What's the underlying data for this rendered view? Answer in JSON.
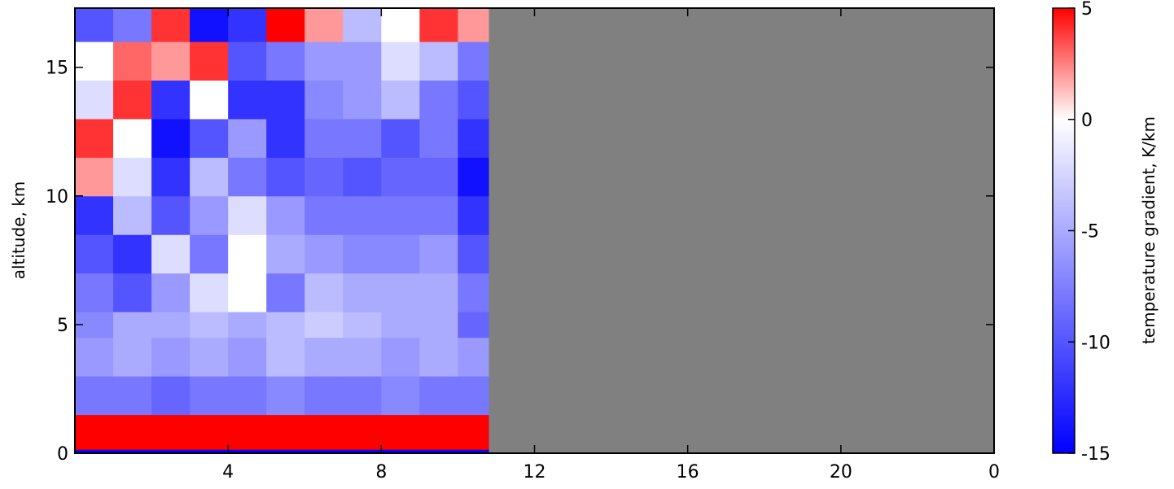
{
  "chart_data": {
    "type": "heatmap",
    "y_label": "altitude, km",
    "colorbar_label": "temperature gradient, K/km",
    "x_edges": [
      0,
      1,
      2,
      3,
      4,
      5,
      6,
      7,
      8,
      9,
      10,
      10.8
    ],
    "y_edges": [
      0,
      0.15,
      1.5,
      3,
      4.5,
      5.5,
      7,
      8.5,
      10,
      11.5,
      13,
      14.5,
      16,
      17.3
    ],
    "z": [
      [
        -15,
        -15,
        -15,
        -15,
        -15,
        -15,
        -15,
        -15,
        -15,
        -15,
        -15
      ],
      [
        5,
        5,
        5,
        5,
        5,
        5,
        5,
        5,
        5,
        5,
        5
      ],
      [
        -8,
        -8,
        -9,
        -8,
        -8,
        -7,
        -8,
        -8,
        -7,
        -8,
        -8
      ],
      [
        -6,
        -5,
        -6,
        -5,
        -6,
        -4,
        -5,
        -5,
        -6,
        -5,
        -6
      ],
      [
        -7,
        -5,
        -5,
        -4,
        -5,
        -4,
        -3,
        -4,
        -5,
        -5,
        -9
      ],
      [
        -8,
        -10,
        -6,
        -2,
        0,
        -8,
        -4,
        -5,
        -5,
        -5,
        -8
      ],
      [
        -10,
        -12,
        -2,
        -8,
        0,
        -5,
        -6,
        -7,
        -7,
        -6,
        -10
      ],
      [
        -12,
        -4,
        -10,
        -6,
        -2,
        -6,
        -8,
        -8,
        -8,
        -8,
        -12
      ],
      [
        2,
        -2,
        -12,
        -4,
        -8,
        -10,
        -9,
        -10,
        -9,
        -9,
        -14
      ],
      [
        4,
        0,
        -14,
        -10,
        -6,
        -12,
        -8,
        -8,
        -10,
        -8,
        -12
      ],
      [
        -2,
        4,
        -12,
        0,
        -12,
        -12,
        -7,
        -6,
        -4,
        -8,
        -10
      ],
      [
        0,
        3,
        2,
        4,
        -10,
        -8,
        -6,
        -6,
        -2,
        -4,
        -8
      ],
      [
        -10,
        -8,
        4,
        -14,
        -12,
        5,
        2,
        -4,
        0,
        4,
        2
      ]
    ],
    "xlim": [
      0,
      24
    ],
    "ylim": [
      0,
      17.3
    ],
    "xticks": [
      4,
      8,
      12,
      16,
      20,
      {
        "value": 24,
        "label": "0"
      }
    ],
    "yticks": [
      0,
      5,
      10,
      15
    ],
    "clim": [
      -15,
      5
    ],
    "colormap": [
      "#0000ff",
      "#ffffff",
      "#ff0000"
    ],
    "colormap_center": 0,
    "cticks": [
      -15,
      -10,
      -5,
      0,
      5
    ],
    "missing_color": "#808080"
  }
}
